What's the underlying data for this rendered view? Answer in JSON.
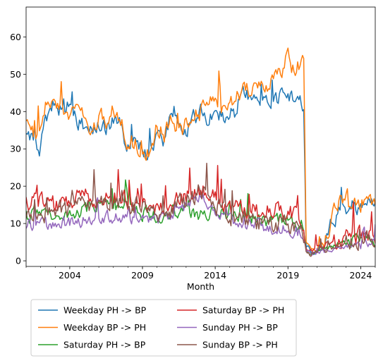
{
  "chart_data": {
    "type": "line",
    "title": "",
    "xlabel": "Month",
    "ylabel": "",
    "xlim": [
      2001.0,
      2025.0
    ],
    "ylim": [
      -1.5,
      68
    ],
    "x_ticks": [
      {
        "value": 2004,
        "label": "2004"
      },
      {
        "value": 2009,
        "label": "2009"
      },
      {
        "value": 2014,
        "label": "2014"
      },
      {
        "value": 2019,
        "label": "2019"
      },
      {
        "value": 2024,
        "label": "2024"
      }
    ],
    "y_ticks": [
      0,
      10,
      20,
      30,
      40,
      50,
      60
    ],
    "grid": false,
    "legend": {
      "placement": "below-left",
      "columns": 2
    },
    "series": [
      {
        "name": "Weekday PH -> BP",
        "color": "#1f77b4",
        "noise": 3.5,
        "anchors": [
          [
            2001.0,
            33
          ],
          [
            2001.5,
            32
          ],
          [
            2002.0,
            30
          ],
          [
            2002.5,
            40
          ],
          [
            2003.0,
            42
          ],
          [
            2003.5,
            40
          ],
          [
            2004.0,
            42
          ],
          [
            2004.5,
            38
          ],
          [
            2005.0,
            36
          ],
          [
            2005.5,
            35
          ],
          [
            2006.0,
            37
          ],
          [
            2006.5,
            36
          ],
          [
            2007.0,
            37
          ],
          [
            2007.5,
            36
          ],
          [
            2008.0,
            30
          ],
          [
            2008.5,
            31
          ],
          [
            2009.0,
            30
          ],
          [
            2009.5,
            28
          ],
          [
            2010.0,
            33
          ],
          [
            2010.5,
            31
          ],
          [
            2011.0,
            40
          ],
          [
            2011.5,
            36
          ],
          [
            2012.0,
            35
          ],
          [
            2012.5,
            38
          ],
          [
            2013.0,
            40
          ],
          [
            2013.5,
            38
          ],
          [
            2014.0,
            41
          ],
          [
            2014.5,
            38
          ],
          [
            2015.0,
            39
          ],
          [
            2015.5,
            42
          ],
          [
            2016.0,
            45
          ],
          [
            2016.5,
            44
          ],
          [
            2017.0,
            44
          ],
          [
            2017.5,
            42
          ],
          [
            2018.0,
            43
          ],
          [
            2018.5,
            44
          ],
          [
            2019.0,
            44
          ],
          [
            2019.5,
            44
          ],
          [
            2019.9,
            43
          ],
          [
            2020.1,
            40
          ],
          [
            2020.25,
            4
          ],
          [
            2020.6,
            2
          ],
          [
            2021.0,
            2
          ],
          [
            2021.5,
            4
          ],
          [
            2022.0,
            10
          ],
          [
            2022.5,
            13
          ],
          [
            2023.0,
            14
          ],
          [
            2023.5,
            15
          ],
          [
            2024.0,
            14
          ],
          [
            2024.5,
            15
          ],
          [
            2025.0,
            15
          ]
        ]
      },
      {
        "name": "Weekday BP -> PH",
        "color": "#ff7f0e",
        "noise": 3.8,
        "anchors": [
          [
            2001.0,
            36
          ],
          [
            2001.5,
            34
          ],
          [
            2002.0,
            35
          ],
          [
            2002.5,
            44
          ],
          [
            2003.0,
            44
          ],
          [
            2003.5,
            41
          ],
          [
            2004.0,
            40
          ],
          [
            2004.5,
            40
          ],
          [
            2005.0,
            38
          ],
          [
            2005.5,
            34
          ],
          [
            2006.0,
            38
          ],
          [
            2006.5,
            38
          ],
          [
            2007.0,
            40
          ],
          [
            2007.5,
            37
          ],
          [
            2008.0,
            32
          ],
          [
            2008.5,
            31
          ],
          [
            2009.0,
            31
          ],
          [
            2009.5,
            29
          ],
          [
            2010.0,
            36
          ],
          [
            2010.5,
            34
          ],
          [
            2011.0,
            38
          ],
          [
            2011.5,
            35
          ],
          [
            2012.0,
            36
          ],
          [
            2012.5,
            38
          ],
          [
            2013.0,
            40
          ],
          [
            2013.5,
            41
          ],
          [
            2014.0,
            43
          ],
          [
            2014.5,
            40
          ],
          [
            2015.0,
            41
          ],
          [
            2015.5,
            44
          ],
          [
            2016.0,
            47
          ],
          [
            2016.5,
            46
          ],
          [
            2017.0,
            47
          ],
          [
            2017.5,
            46
          ],
          [
            2018.0,
            48
          ],
          [
            2018.5,
            50
          ],
          [
            2019.0,
            55
          ],
          [
            2019.5,
            50
          ],
          [
            2019.9,
            54
          ],
          [
            2020.1,
            52
          ],
          [
            2020.25,
            5
          ],
          [
            2020.6,
            2
          ],
          [
            2021.0,
            3
          ],
          [
            2021.5,
            5
          ],
          [
            2022.0,
            12
          ],
          [
            2022.5,
            16
          ],
          [
            2023.0,
            16
          ],
          [
            2023.5,
            17
          ],
          [
            2024.0,
            16
          ],
          [
            2024.5,
            16
          ],
          [
            2025.0,
            16
          ]
        ]
      },
      {
        "name": "Saturday PH -> BP",
        "color": "#2ca02c",
        "noise": 3.0,
        "anchors": [
          [
            2001.0,
            12
          ],
          [
            2002.0,
            12
          ],
          [
            2003.0,
            13
          ],
          [
            2004.0,
            13
          ],
          [
            2005.0,
            14
          ],
          [
            2006.0,
            15
          ],
          [
            2007.0,
            15
          ],
          [
            2008.0,
            14
          ],
          [
            2009.0,
            13
          ],
          [
            2010.0,
            12
          ],
          [
            2011.0,
            13
          ],
          [
            2012.0,
            13
          ],
          [
            2013.0,
            13
          ],
          [
            2014.0,
            13
          ],
          [
            2015.0,
            12
          ],
          [
            2016.0,
            12
          ],
          [
            2017.0,
            11
          ],
          [
            2018.0,
            11
          ],
          [
            2019.0,
            11
          ],
          [
            2020.0,
            8
          ],
          [
            2020.3,
            2
          ],
          [
            2021.0,
            2
          ],
          [
            2022.0,
            4
          ],
          [
            2023.0,
            5
          ],
          [
            2024.0,
            6
          ],
          [
            2025.0,
            6
          ]
        ]
      },
      {
        "name": "Saturday BP -> PH",
        "color": "#d62728",
        "noise": 3.8,
        "anchors": [
          [
            2001.0,
            15
          ],
          [
            2002.0,
            16
          ],
          [
            2003.0,
            15
          ],
          [
            2004.0,
            16
          ],
          [
            2005.0,
            17
          ],
          [
            2006.0,
            17
          ],
          [
            2007.0,
            17
          ],
          [
            2008.0,
            16
          ],
          [
            2009.0,
            15
          ],
          [
            2010.0,
            14
          ],
          [
            2011.0,
            15
          ],
          [
            2012.0,
            17
          ],
          [
            2013.0,
            19
          ],
          [
            2014.0,
            17
          ],
          [
            2015.0,
            14
          ],
          [
            2016.0,
            14
          ],
          [
            2017.0,
            13
          ],
          [
            2018.0,
            14
          ],
          [
            2019.0,
            14
          ],
          [
            2020.0,
            10
          ],
          [
            2020.3,
            2
          ],
          [
            2021.0,
            3
          ],
          [
            2022.0,
            5
          ],
          [
            2023.0,
            6
          ],
          [
            2024.0,
            7
          ],
          [
            2025.0,
            7
          ]
        ]
      },
      {
        "name": "Sunday PH -> BP",
        "color": "#9467bd",
        "noise": 2.8,
        "anchors": [
          [
            2001.0,
            10
          ],
          [
            2002.0,
            10
          ],
          [
            2003.0,
            10
          ],
          [
            2004.0,
            10
          ],
          [
            2005.0,
            11
          ],
          [
            2006.0,
            12
          ],
          [
            2007.0,
            12
          ],
          [
            2008.0,
            12
          ],
          [
            2009.0,
            11
          ],
          [
            2010.0,
            11
          ],
          [
            2011.0,
            12
          ],
          [
            2012.0,
            15
          ],
          [
            2013.0,
            18
          ],
          [
            2014.0,
            14
          ],
          [
            2015.0,
            11
          ],
          [
            2016.0,
            10
          ],
          [
            2017.0,
            9
          ],
          [
            2018.0,
            9
          ],
          [
            2019.0,
            9
          ],
          [
            2020.0,
            7
          ],
          [
            2020.3,
            2
          ],
          [
            2021.0,
            2
          ],
          [
            2022.0,
            3
          ],
          [
            2023.0,
            4
          ],
          [
            2024.0,
            5
          ],
          [
            2025.0,
            5
          ]
        ]
      },
      {
        "name": "Sunday BP -> PH",
        "color": "#8c564b",
        "noise": 4.0,
        "anchors": [
          [
            2001.0,
            13
          ],
          [
            2002.0,
            13
          ],
          [
            2003.0,
            13
          ],
          [
            2004.0,
            14
          ],
          [
            2005.0,
            15
          ],
          [
            2006.0,
            15
          ],
          [
            2007.0,
            15
          ],
          [
            2008.0,
            15
          ],
          [
            2009.0,
            14
          ],
          [
            2010.0,
            13
          ],
          [
            2011.0,
            14
          ],
          [
            2012.0,
            16
          ],
          [
            2013.0,
            19
          ],
          [
            2014.0,
            15
          ],
          [
            2015.0,
            12
          ],
          [
            2016.0,
            11
          ],
          [
            2017.0,
            10
          ],
          [
            2018.0,
            10
          ],
          [
            2019.0,
            10
          ],
          [
            2020.0,
            8
          ],
          [
            2020.3,
            2
          ],
          [
            2021.0,
            2
          ],
          [
            2022.0,
            4
          ],
          [
            2023.0,
            5
          ],
          [
            2024.0,
            6
          ],
          [
            2025.0,
            6
          ]
        ]
      }
    ]
  }
}
